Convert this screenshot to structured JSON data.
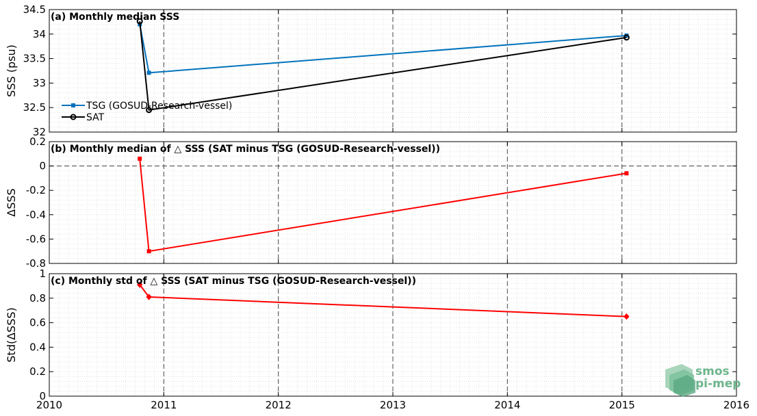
{
  "chart_data": [
    {
      "type": "line",
      "title": "(a) Monthly median SSS",
      "ylabel": "SSS (psu)",
      "xlim": [
        2010,
        2016
      ],
      "ylim": [
        32,
        34.5
      ],
      "xticks": [
        2010,
        2011,
        2012,
        2013,
        2014,
        2015,
        2016
      ],
      "yticks": [
        32,
        32.5,
        33,
        33.5,
        34,
        34.5
      ],
      "ytick_labels": [
        "32",
        "32.5",
        "33",
        "33.5",
        "34",
        "34.5"
      ],
      "grid": "dashed vertical lines at year boundaries, minor dotted grid",
      "legend_position": "lower-left",
      "series": [
        {
          "name": "TSG (GOSUD-Research-vessel)",
          "color": "#0072bd",
          "marker": "square",
          "x": [
            2010.79,
            2010.87,
            2015.04
          ],
          "y": [
            34.2,
            33.21,
            33.97
          ]
        },
        {
          "name": "SAT",
          "color": "#000000",
          "marker": "circle",
          "x": [
            2010.79,
            2010.87,
            2015.04
          ],
          "y": [
            34.26,
            32.45,
            33.93
          ]
        }
      ]
    },
    {
      "type": "line",
      "title": "(b) Monthly median of △ SSS (SAT minus TSG (GOSUD-Research-vessel))",
      "ylabel": "ΔSSS",
      "xlim": [
        2010,
        2016
      ],
      "ylim": [
        -0.8,
        0.2
      ],
      "xticks": [
        2010,
        2011,
        2012,
        2013,
        2014,
        2015,
        2016
      ],
      "yticks": [
        -0.8,
        -0.6,
        -0.4,
        -0.2,
        0,
        0.2
      ],
      "ytick_labels": [
        "-0.8",
        "-0.6",
        "-0.4",
        "-0.2",
        "0",
        "0.2"
      ],
      "reference_line_y": 0,
      "series": [
        {
          "color": "#ff0000",
          "marker": "square",
          "x": [
            2010.79,
            2010.87,
            2015.04
          ],
          "y": [
            0.06,
            -0.7,
            -0.06
          ]
        }
      ]
    },
    {
      "type": "line",
      "title": "(c) Monthly std of △ SSS (SAT minus TSG (GOSUD-Research-vessel))",
      "ylabel": "Std(ΔSSS)",
      "xlim": [
        2010,
        2016
      ],
      "ylim": [
        0,
        1
      ],
      "xticks": [
        2010,
        2011,
        2012,
        2013,
        2014,
        2015,
        2016
      ],
      "xtick_labels": [
        "2010",
        "2011",
        "2012",
        "2013",
        "2014",
        "2015",
        "2016"
      ],
      "yticks": [
        0,
        0.2,
        0.4,
        0.6,
        0.8,
        1
      ],
      "ytick_labels": [
        "0",
        "0.2",
        "0.4",
        "0.6",
        "0.8",
        "1"
      ],
      "series": [
        {
          "color": "#ff0000",
          "marker": "diamond",
          "x": [
            2010.79,
            2010.87,
            2015.04
          ],
          "y": [
            0.91,
            0.81,
            0.65
          ]
        }
      ]
    }
  ],
  "logo": {
    "line1": "smos",
    "line2": "pi-mep",
    "color": "#6db58c"
  }
}
